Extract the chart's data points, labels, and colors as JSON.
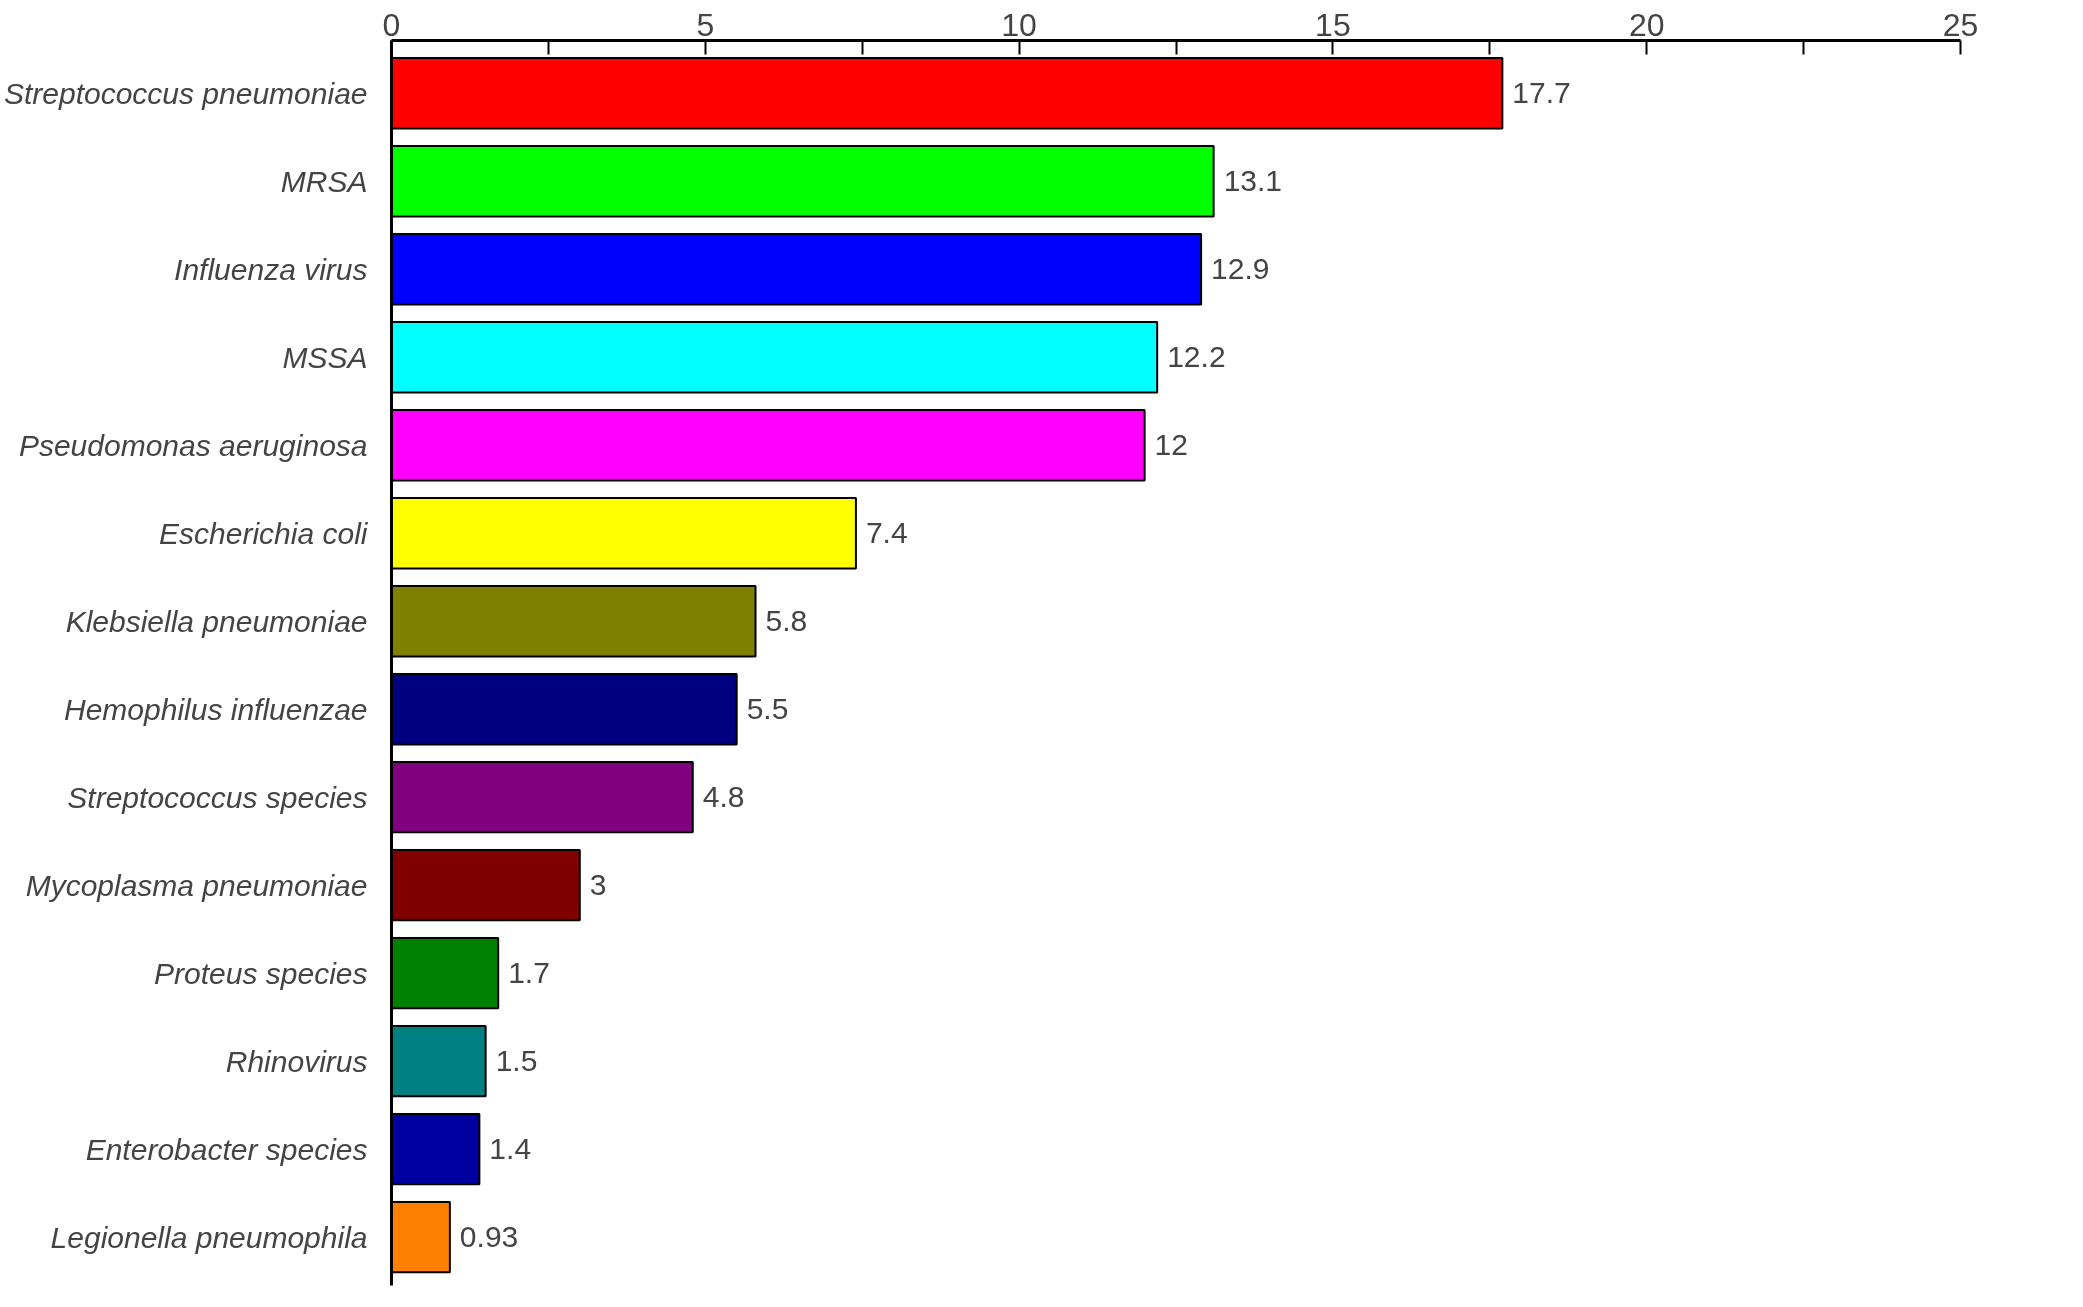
{
  "chart_data": {
    "type": "bar",
    "orientation": "horizontal",
    "categories": [
      "Streptococcus pneumoniae",
      "MRSA",
      "Influenza virus",
      "MSSA",
      "Pseudomonas aeruginosa",
      "Escherichia coli",
      "Klebsiella pneumoniae",
      "Hemophilus influenzae",
      "Streptococcus species",
      "Mycoplasma pneumoniae",
      "Proteus species",
      "Rhinovirus",
      "Enterobacter species",
      "Legionella pneumophila"
    ],
    "values": [
      17.7,
      13.1,
      12.9,
      12.2,
      12,
      7.4,
      5.8,
      5.5,
      4.8,
      3,
      1.7,
      1.5,
      1.4,
      0.93
    ],
    "colors": [
      "#ff0000",
      "#00ff00",
      "#0000ff",
      "#00ffff",
      "#ff00ff",
      "#ffff00",
      "#808000",
      "#000080",
      "#800080",
      "#800000",
      "#008000",
      "#008080",
      "#0000a0",
      "#ff8000"
    ],
    "xlim": [
      0,
      25
    ],
    "xticks": [
      0,
      {
        "value": 2.5,
        "label": null
      },
      5,
      {
        "value": 7.5,
        "label": null
      },
      10,
      {
        "value": 12.5,
        "label": null
      },
      15,
      {
        "value": 17.5,
        "label": null
      },
      20,
      {
        "value": 22.5,
        "label": null
      },
      25
    ],
    "data_labels": true,
    "grid": false
  }
}
